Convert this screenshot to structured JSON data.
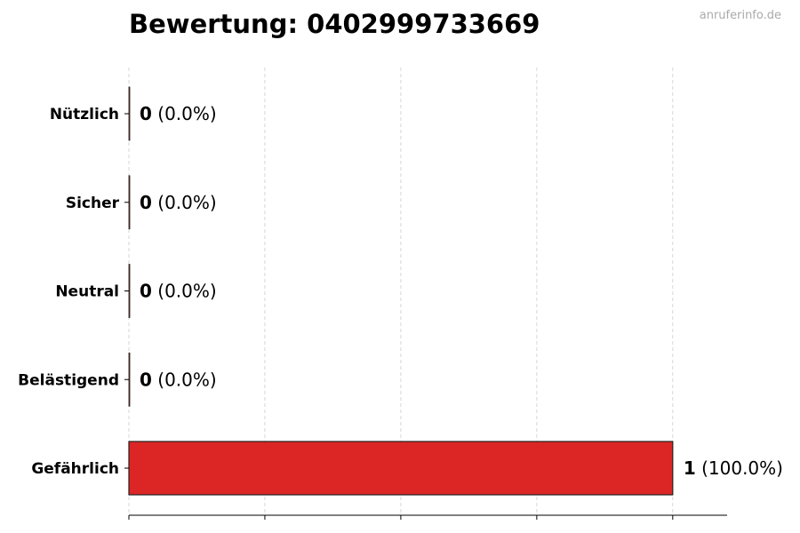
{
  "chart_data": {
    "type": "bar",
    "orientation": "horizontal",
    "title": "Bewertung: 0402999733669",
    "categories": [
      "Nützlich",
      "Sicher",
      "Neutral",
      "Belästigend",
      "Gefährlich"
    ],
    "values": [
      0,
      0,
      0,
      0,
      1
    ],
    "value_labels": [
      "0",
      "0",
      "0",
      "0",
      "1"
    ],
    "percent_labels": [
      "(0.0%)",
      "(0.0%)",
      "(0.0%)",
      "(0.0%)",
      "(100.0%)"
    ],
    "bar_color": "#dc2626",
    "xlim": [
      0,
      1.1
    ],
    "xticks": [
      0,
      0.25,
      0.5,
      0.75,
      1
    ],
    "xtick_labels_shown": false,
    "grid": "vertical dashed",
    "xlabel": "",
    "ylabel": ""
  },
  "watermark": "anruferinfo.de"
}
